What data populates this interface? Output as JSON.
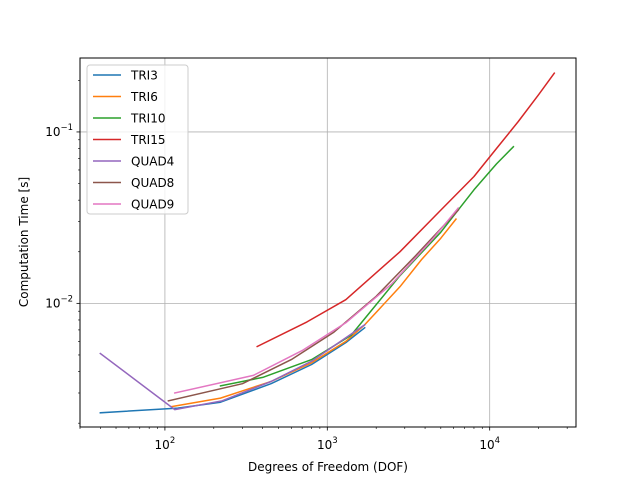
{
  "chart_data": {
    "type": "line",
    "title": "",
    "xlabel": "Degrees of Freedom (DOF)",
    "ylabel": "Computation Time [s]",
    "xscale": "log",
    "yscale": "log",
    "xlim": [
      30,
      34000
    ],
    "ylim": [
      0.0019,
      0.27
    ],
    "grid": true,
    "legend_position": "top-left",
    "x_ticks": [
      {
        "value": 100,
        "base": "10",
        "exp": "2"
      },
      {
        "value": 1000,
        "base": "10",
        "exp": "3"
      },
      {
        "value": 10000,
        "base": "10",
        "exp": "4"
      }
    ],
    "y_ticks": [
      {
        "value": 0.01,
        "base": "10",
        "exp": "−2"
      },
      {
        "value": 0.1,
        "base": "10",
        "exp": "−1"
      }
    ],
    "series": [
      {
        "name": "TRI3",
        "color": "#1f77b4",
        "x": [
          40,
          120,
          220,
          450,
          800,
          1300,
          1700
        ],
        "y": [
          0.0023,
          0.00245,
          0.00265,
          0.0034,
          0.0044,
          0.0059,
          0.0072
        ]
      },
      {
        "name": "TRI6",
        "color": "#ff7f0e",
        "x": [
          110,
          220,
          450,
          800,
          1300,
          1700,
          2800,
          3800,
          5000,
          6200
        ],
        "y": [
          0.0025,
          0.0028,
          0.0035,
          0.0045,
          0.006,
          0.0075,
          0.0125,
          0.018,
          0.024,
          0.031
        ]
      },
      {
        "name": "TRI10",
        "color": "#2ca02c",
        "x": [
          220,
          400,
          800,
          1400,
          2800,
          5000,
          8000,
          11000,
          14000
        ],
        "y": [
          0.0033,
          0.0037,
          0.0047,
          0.0065,
          0.0145,
          0.026,
          0.046,
          0.065,
          0.082
        ]
      },
      {
        "name": "TRI15",
        "color": "#d62728",
        "x": [
          370,
          750,
          1300,
          2800,
          5000,
          8000,
          11000,
          15000,
          20000,
          25000
        ],
        "y": [
          0.0056,
          0.0078,
          0.0105,
          0.02,
          0.035,
          0.055,
          0.08,
          0.115,
          0.165,
          0.22
        ]
      },
      {
        "name": "QUAD4",
        "color": "#9467bd",
        "x": [
          40,
          115,
          225,
          450,
          800,
          1300,
          1700
        ],
        "y": [
          0.0051,
          0.0024,
          0.0027,
          0.0035,
          0.0046,
          0.0063,
          0.0075
        ]
      },
      {
        "name": "QUAD8",
        "color": "#8c564b",
        "x": [
          105,
          300,
          600,
          1100,
          2000,
          3500,
          6400
        ],
        "y": [
          0.0027,
          0.0034,
          0.0047,
          0.0068,
          0.011,
          0.019,
          0.035
        ]
      },
      {
        "name": "QUAD9",
        "color": "#e377c2",
        "x": [
          115,
          350,
          700,
          1300,
          2500,
          4500,
          6400
        ],
        "y": [
          0.003,
          0.0038,
          0.0053,
          0.0077,
          0.013,
          0.024,
          0.036
        ]
      }
    ]
  }
}
